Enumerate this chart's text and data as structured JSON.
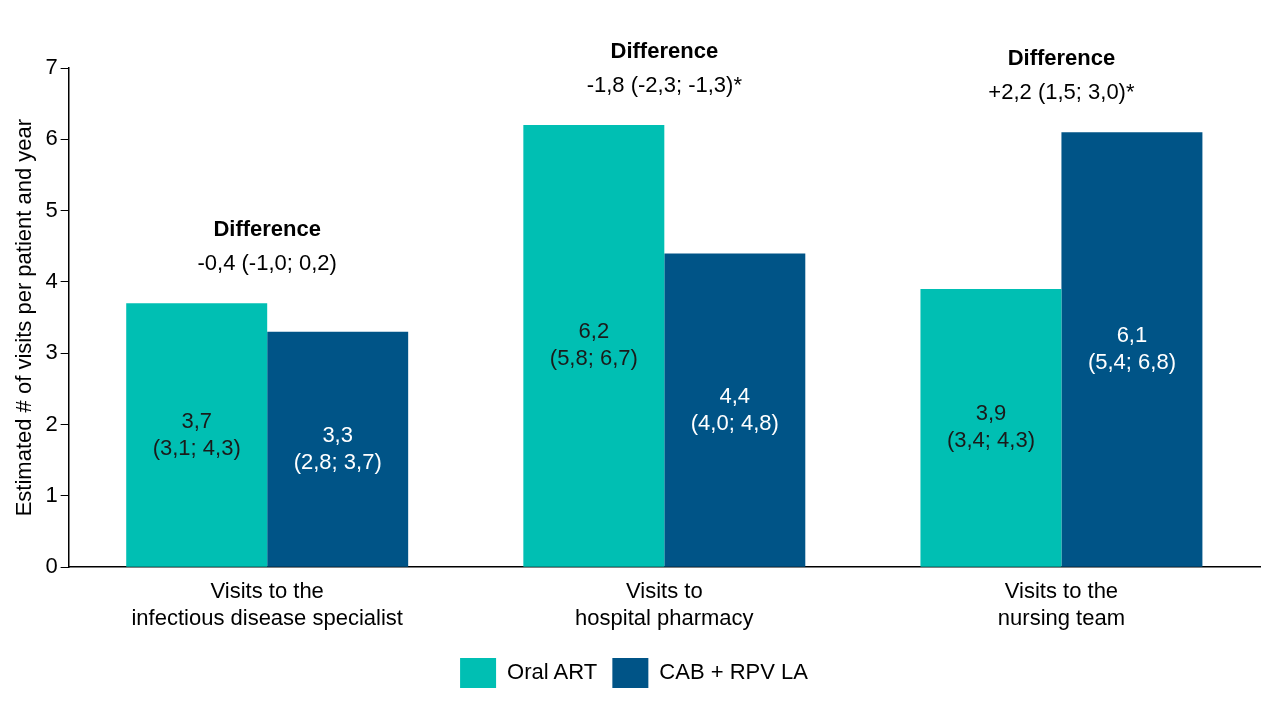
{
  "chart_data": {
    "type": "bar",
    "ylabel": "Estimated # of visits per patient and year",
    "categories": [
      "Visits to the\ninfectious disease specialist",
      "Visits to\nhospital pharmacy",
      "Visits to the\nnursing team"
    ],
    "series": [
      {
        "name": "Oral ART",
        "color": "#00bfb3",
        "values": [
          3.7,
          6.2,
          3.9
        ],
        "value_labels": [
          "3,7\n(3,1; 4,3)",
          "6,2\n(5,8; 6,7)",
          "3,9\n(3,4; 4,3)"
        ]
      },
      {
        "name": "CAB + RPV LA",
        "color": "#005487",
        "values": [
          3.3,
          4.4,
          6.1
        ],
        "value_labels": [
          "3,3\n(2,8; 3,7)",
          "4,4\n(4,0; 4,8)",
          "6,1\n(5,4; 6,8)"
        ]
      }
    ],
    "ylim": [
      0,
      7
    ],
    "yticks": [
      0,
      1,
      2,
      3,
      4,
      5,
      6,
      7
    ],
    "legend": "bottom",
    "annotations": [
      "Difference\n-0,4 (-1,0; 0,2)",
      "Difference\n-1,8 (-2,3; -1,3)*",
      "Difference\n+2,2 (1,5; 3,0)*"
    ]
  }
}
